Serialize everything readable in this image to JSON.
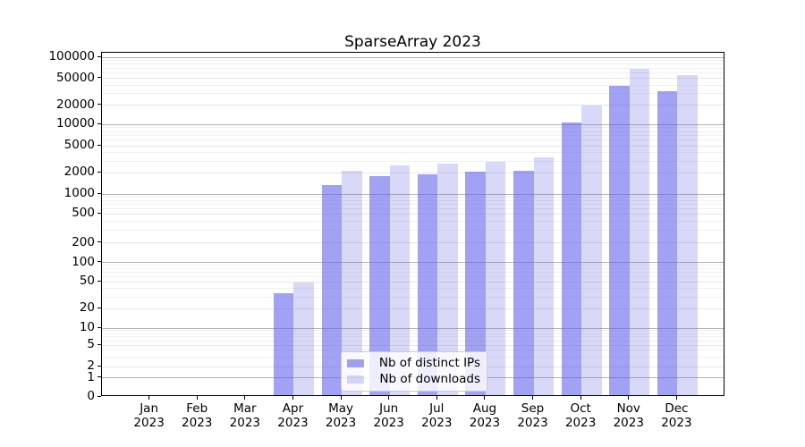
{
  "figure": {
    "background": "#ffffff",
    "spine_color": "#000000",
    "grid_major_color": "#b2b2b2",
    "grid_labeled_color": "#e6e6e6",
    "grid_minor_color": "#f0f0f0"
  },
  "chart_data": {
    "type": "bar",
    "bar_mode": "grouped",
    "title": "SparseArray 2023",
    "categories": [
      "Jan",
      "Feb",
      "Mar",
      "Apr",
      "May",
      "Jun",
      "Jul",
      "Aug",
      "Sep",
      "Oct",
      "Nov",
      "Dec"
    ],
    "category_year": "2023",
    "series": [
      {
        "name": "Nb of distinct IPs",
        "color": "rgba(100,100,233,0.6)",
        "values": [
          0,
          0,
          0,
          32,
          1250,
          1700,
          1800,
          1950,
          2050,
          10000,
          36000,
          30000
        ]
      },
      {
        "name": "Nb of downloads",
        "color": "rgba(100,100,233,0.25)",
        "values": [
          0,
          0,
          0,
          46,
          2050,
          2400,
          2600,
          2700,
          3200,
          18500,
          65000,
          53000
        ]
      }
    ],
    "xlabel": "",
    "ylabel": "",
    "yscale": "symlog",
    "yticks": [
      0,
      1,
      2,
      5,
      10,
      20,
      50,
      100,
      200,
      500,
      1000,
      2000,
      5000,
      10000,
      20000,
      50000,
      100000
    ],
    "ylim": [
      0,
      118000
    ],
    "grid": "on",
    "legend_position": "lower-center-inside"
  }
}
